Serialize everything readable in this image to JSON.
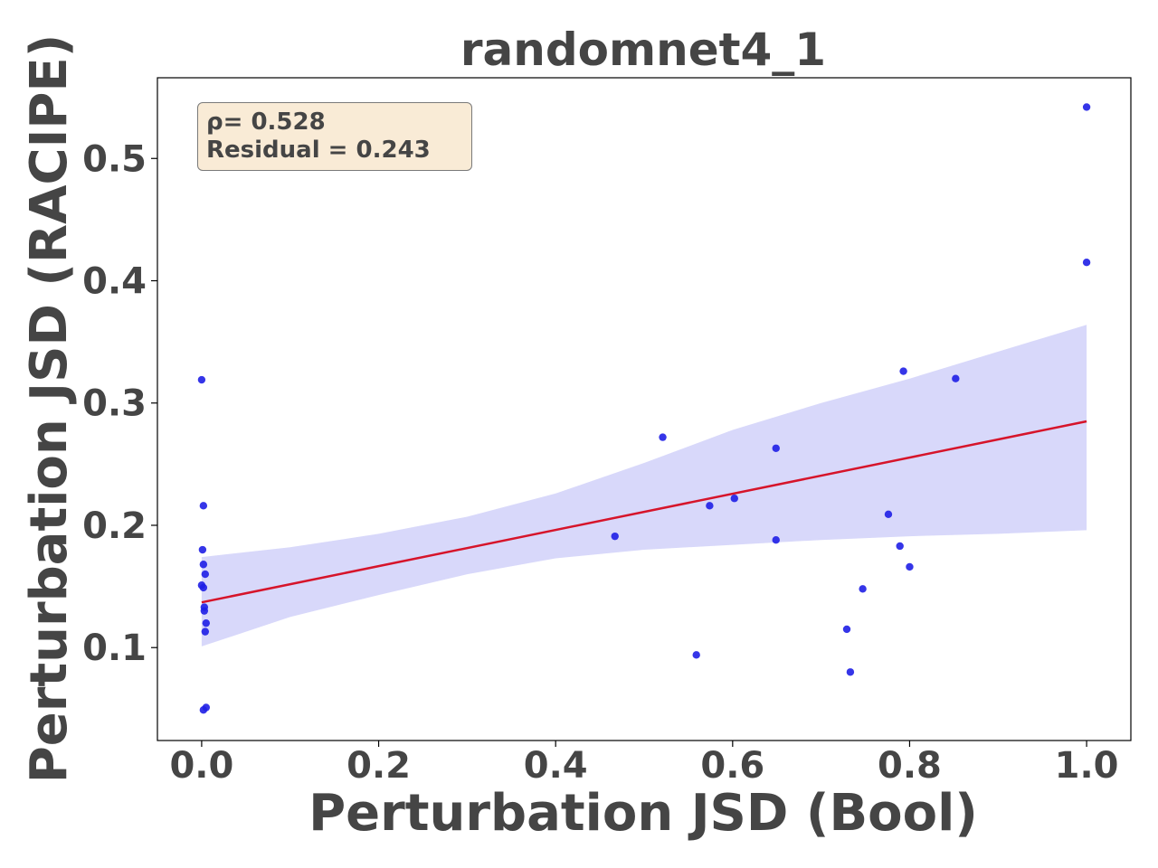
{
  "chart_data": {
    "type": "scatter",
    "title": "randomnet4_1",
    "xlabel": "Perturbation JSD (Bool)",
    "ylabel": "Perturbation JSD (RACIPE)",
    "xlim": [
      -0.05,
      1.05
    ],
    "ylim": [
      0.024,
      0.566
    ],
    "xticks": [
      "0.0",
      "0.2",
      "0.4",
      "0.6",
      "0.8",
      "1.0"
    ],
    "xtick_values": [
      0.0,
      0.2,
      0.4,
      0.6,
      0.8,
      1.0
    ],
    "yticks": [
      "0.1",
      "0.2",
      "0.3",
      "0.4",
      "0.5"
    ],
    "ytick_values": [
      0.1,
      0.2,
      0.3,
      0.4,
      0.5
    ],
    "grid": false,
    "annotation": {
      "rho": "ρ= 0.528",
      "residual": "Residual = 0.243"
    },
    "points": [
      {
        "x": 0.0,
        "y": 0.319
      },
      {
        "x": 0.002,
        "y": 0.216
      },
      {
        "x": 0.001,
        "y": 0.18
      },
      {
        "x": 0.002,
        "y": 0.168
      },
      {
        "x": 0.004,
        "y": 0.16
      },
      {
        "x": 0.0,
        "y": 0.151
      },
      {
        "x": 0.002,
        "y": 0.149
      },
      {
        "x": 0.003,
        "y": 0.133
      },
      {
        "x": 0.003,
        "y": 0.13
      },
      {
        "x": 0.005,
        "y": 0.12
      },
      {
        "x": 0.004,
        "y": 0.113
      },
      {
        "x": 0.005,
        "y": 0.051
      },
      {
        "x": 0.002,
        "y": 0.049
      },
      {
        "x": 0.467,
        "y": 0.191
      },
      {
        "x": 0.521,
        "y": 0.272
      },
      {
        "x": 0.559,
        "y": 0.094
      },
      {
        "x": 0.574,
        "y": 0.216
      },
      {
        "x": 0.602,
        "y": 0.222
      },
      {
        "x": 0.649,
        "y": 0.263
      },
      {
        "x": 0.649,
        "y": 0.188
      },
      {
        "x": 0.729,
        "y": 0.115
      },
      {
        "x": 0.733,
        "y": 0.08
      },
      {
        "x": 0.747,
        "y": 0.148
      },
      {
        "x": 0.776,
        "y": 0.209
      },
      {
        "x": 0.789,
        "y": 0.183
      },
      {
        "x": 0.793,
        "y": 0.326
      },
      {
        "x": 0.8,
        "y": 0.166
      },
      {
        "x": 0.852,
        "y": 0.32
      },
      {
        "x": 1.0,
        "y": 0.542
      },
      {
        "x": 1.0,
        "y": 0.415
      }
    ],
    "regression": {
      "intercept": 0.137,
      "slope": 0.148
    },
    "confidence_band": [
      {
        "x": 0.0,
        "low": 0.101,
        "high": 0.174
      },
      {
        "x": 0.1,
        "low": 0.125,
        "high": 0.182
      },
      {
        "x": 0.2,
        "low": 0.143,
        "high": 0.193
      },
      {
        "x": 0.3,
        "low": 0.16,
        "high": 0.207
      },
      {
        "x": 0.4,
        "low": 0.173,
        "high": 0.226
      },
      {
        "x": 0.5,
        "low": 0.18,
        "high": 0.251
      },
      {
        "x": 0.6,
        "low": 0.184,
        "high": 0.278
      },
      {
        "x": 0.7,
        "low": 0.188,
        "high": 0.3
      },
      {
        "x": 0.8,
        "low": 0.191,
        "high": 0.32
      },
      {
        "x": 0.9,
        "low": 0.193,
        "high": 0.342
      },
      {
        "x": 1.0,
        "low": 0.196,
        "high": 0.364
      }
    ],
    "colors": {
      "points": "#1f1fe6",
      "regression_line": "#d6142a",
      "band": "#d8d8fa",
      "text": "#454545",
      "annotation_bg": "#f9ebd6"
    }
  }
}
